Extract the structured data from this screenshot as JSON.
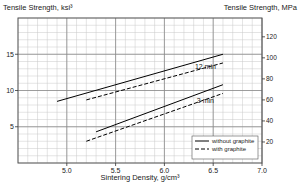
{
  "chart_data": {
    "type": "line",
    "y_label": "Tensile Strength, ksi³",
    "y2_label": "Tensile Strength, MPa",
    "x_label": "Sintering Density, g/cm³",
    "color": "#000000",
    "grid": true,
    "legend": "lower right",
    "xlim": [
      4.5,
      7.0
    ],
    "xticks": [
      {
        "value": 5,
        "label": "5.0"
      },
      5.5,
      {
        "value": 6,
        "label": "6.0"
      },
      6.5,
      {
        "value": 7,
        "label": "7.0"
      }
    ],
    "ylim": [
      0,
      20
    ],
    "yticks": [
      5,
      10,
      15
    ],
    "y2lim": [
      0,
      137.9
    ],
    "y2ticks": [
      20,
      40,
      60,
      80,
      100,
      120
    ],
    "series": [
      {
        "name": "without graphite",
        "line_style": "solid",
        "x": [
          4.9,
          6.6
        ],
        "values": [
          8.5,
          15.0
        ]
      },
      {
        "name": "with graphite",
        "line_style": "dashed",
        "x": [
          5.2,
          6.6
        ],
        "values": [
          8.7,
          13.8
        ]
      },
      {
        "name": "without graphite",
        "line_style": "solid",
        "x": [
          5.3,
          6.6
        ],
        "values": [
          4.3,
          10.8
        ]
      },
      {
        "name": "with graphite",
        "line_style": "dashed",
        "x": [
          5.2,
          6.6
        ],
        "values": [
          3.0,
          9.6
        ]
      }
    ],
    "annotations": [
      {
        "text": "12 min",
        "x": 6.42,
        "y": 13.0
      },
      {
        "text": "3 min",
        "x": 6.42,
        "y": 8.3
      }
    ]
  }
}
